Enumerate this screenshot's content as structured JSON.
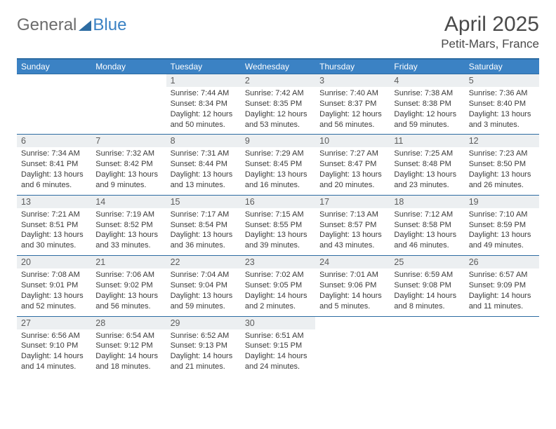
{
  "brand": {
    "part1": "General",
    "part2": "Blue"
  },
  "title": "April 2025",
  "location": "Petit-Mars, France",
  "colors": {
    "header_bg": "#3b82c4",
    "header_text": "#ffffff",
    "dayhead_bg": "#eceff1",
    "dayhead_text": "#5c5c5c",
    "border": "#2d6ca2",
    "body_text": "#3a3a3a",
    "logo_gray": "#6c6c6c",
    "logo_blue": "#3b82c4"
  },
  "weekdays": [
    "Sunday",
    "Monday",
    "Tuesday",
    "Wednesday",
    "Thursday",
    "Friday",
    "Saturday"
  ],
  "weeks": [
    [
      null,
      null,
      {
        "n": "1",
        "sr": "Sunrise: 7:44 AM",
        "ss": "Sunset: 8:34 PM",
        "d1": "Daylight: 12 hours",
        "d2": "and 50 minutes."
      },
      {
        "n": "2",
        "sr": "Sunrise: 7:42 AM",
        "ss": "Sunset: 8:35 PM",
        "d1": "Daylight: 12 hours",
        "d2": "and 53 minutes."
      },
      {
        "n": "3",
        "sr": "Sunrise: 7:40 AM",
        "ss": "Sunset: 8:37 PM",
        "d1": "Daylight: 12 hours",
        "d2": "and 56 minutes."
      },
      {
        "n": "4",
        "sr": "Sunrise: 7:38 AM",
        "ss": "Sunset: 8:38 PM",
        "d1": "Daylight: 12 hours",
        "d2": "and 59 minutes."
      },
      {
        "n": "5",
        "sr": "Sunrise: 7:36 AM",
        "ss": "Sunset: 8:40 PM",
        "d1": "Daylight: 13 hours",
        "d2": "and 3 minutes."
      }
    ],
    [
      {
        "n": "6",
        "sr": "Sunrise: 7:34 AM",
        "ss": "Sunset: 8:41 PM",
        "d1": "Daylight: 13 hours",
        "d2": "and 6 minutes."
      },
      {
        "n": "7",
        "sr": "Sunrise: 7:32 AM",
        "ss": "Sunset: 8:42 PM",
        "d1": "Daylight: 13 hours",
        "d2": "and 9 minutes."
      },
      {
        "n": "8",
        "sr": "Sunrise: 7:31 AM",
        "ss": "Sunset: 8:44 PM",
        "d1": "Daylight: 13 hours",
        "d2": "and 13 minutes."
      },
      {
        "n": "9",
        "sr": "Sunrise: 7:29 AM",
        "ss": "Sunset: 8:45 PM",
        "d1": "Daylight: 13 hours",
        "d2": "and 16 minutes."
      },
      {
        "n": "10",
        "sr": "Sunrise: 7:27 AM",
        "ss": "Sunset: 8:47 PM",
        "d1": "Daylight: 13 hours",
        "d2": "and 20 minutes."
      },
      {
        "n": "11",
        "sr": "Sunrise: 7:25 AM",
        "ss": "Sunset: 8:48 PM",
        "d1": "Daylight: 13 hours",
        "d2": "and 23 minutes."
      },
      {
        "n": "12",
        "sr": "Sunrise: 7:23 AM",
        "ss": "Sunset: 8:50 PM",
        "d1": "Daylight: 13 hours",
        "d2": "and 26 minutes."
      }
    ],
    [
      {
        "n": "13",
        "sr": "Sunrise: 7:21 AM",
        "ss": "Sunset: 8:51 PM",
        "d1": "Daylight: 13 hours",
        "d2": "and 30 minutes."
      },
      {
        "n": "14",
        "sr": "Sunrise: 7:19 AM",
        "ss": "Sunset: 8:52 PM",
        "d1": "Daylight: 13 hours",
        "d2": "and 33 minutes."
      },
      {
        "n": "15",
        "sr": "Sunrise: 7:17 AM",
        "ss": "Sunset: 8:54 PM",
        "d1": "Daylight: 13 hours",
        "d2": "and 36 minutes."
      },
      {
        "n": "16",
        "sr": "Sunrise: 7:15 AM",
        "ss": "Sunset: 8:55 PM",
        "d1": "Daylight: 13 hours",
        "d2": "and 39 minutes."
      },
      {
        "n": "17",
        "sr": "Sunrise: 7:13 AM",
        "ss": "Sunset: 8:57 PM",
        "d1": "Daylight: 13 hours",
        "d2": "and 43 minutes."
      },
      {
        "n": "18",
        "sr": "Sunrise: 7:12 AM",
        "ss": "Sunset: 8:58 PM",
        "d1": "Daylight: 13 hours",
        "d2": "and 46 minutes."
      },
      {
        "n": "19",
        "sr": "Sunrise: 7:10 AM",
        "ss": "Sunset: 8:59 PM",
        "d1": "Daylight: 13 hours",
        "d2": "and 49 minutes."
      }
    ],
    [
      {
        "n": "20",
        "sr": "Sunrise: 7:08 AM",
        "ss": "Sunset: 9:01 PM",
        "d1": "Daylight: 13 hours",
        "d2": "and 52 minutes."
      },
      {
        "n": "21",
        "sr": "Sunrise: 7:06 AM",
        "ss": "Sunset: 9:02 PM",
        "d1": "Daylight: 13 hours",
        "d2": "and 56 minutes."
      },
      {
        "n": "22",
        "sr": "Sunrise: 7:04 AM",
        "ss": "Sunset: 9:04 PM",
        "d1": "Daylight: 13 hours",
        "d2": "and 59 minutes."
      },
      {
        "n": "23",
        "sr": "Sunrise: 7:02 AM",
        "ss": "Sunset: 9:05 PM",
        "d1": "Daylight: 14 hours",
        "d2": "and 2 minutes."
      },
      {
        "n": "24",
        "sr": "Sunrise: 7:01 AM",
        "ss": "Sunset: 9:06 PM",
        "d1": "Daylight: 14 hours",
        "d2": "and 5 minutes."
      },
      {
        "n": "25",
        "sr": "Sunrise: 6:59 AM",
        "ss": "Sunset: 9:08 PM",
        "d1": "Daylight: 14 hours",
        "d2": "and 8 minutes."
      },
      {
        "n": "26",
        "sr": "Sunrise: 6:57 AM",
        "ss": "Sunset: 9:09 PM",
        "d1": "Daylight: 14 hours",
        "d2": "and 11 minutes."
      }
    ],
    [
      {
        "n": "27",
        "sr": "Sunrise: 6:56 AM",
        "ss": "Sunset: 9:10 PM",
        "d1": "Daylight: 14 hours",
        "d2": "and 14 minutes."
      },
      {
        "n": "28",
        "sr": "Sunrise: 6:54 AM",
        "ss": "Sunset: 9:12 PM",
        "d1": "Daylight: 14 hours",
        "d2": "and 18 minutes."
      },
      {
        "n": "29",
        "sr": "Sunrise: 6:52 AM",
        "ss": "Sunset: 9:13 PM",
        "d1": "Daylight: 14 hours",
        "d2": "and 21 minutes."
      },
      {
        "n": "30",
        "sr": "Sunrise: 6:51 AM",
        "ss": "Sunset: 9:15 PM",
        "d1": "Daylight: 14 hours",
        "d2": "and 24 minutes."
      },
      null,
      null,
      null
    ]
  ]
}
